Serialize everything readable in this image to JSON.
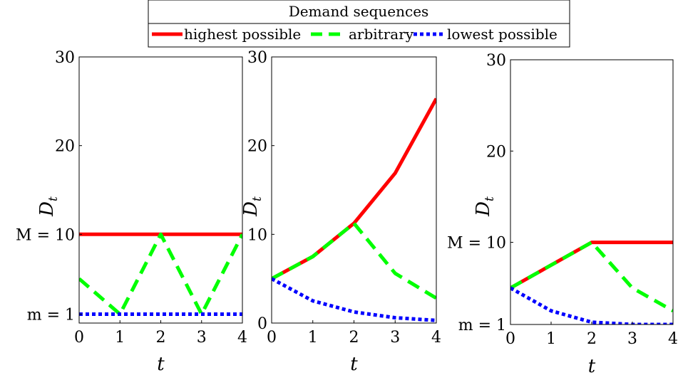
{
  "legend": {
    "title": "Demand sequences",
    "entries": [
      {
        "label": "highest possible",
        "color": "#ff0000",
        "style": "solid"
      },
      {
        "label": "arbitrary",
        "color": "#00ff00",
        "style": "dashed"
      },
      {
        "label": "lowest possible",
        "color": "#0000ff",
        "style": "dotted"
      }
    ]
  },
  "chart_data": [
    {
      "type": "line",
      "xlabel": "t",
      "ylabel": "D",
      "ylabel_subscript": "t",
      "xlim": [
        0,
        4
      ],
      "ylim": [
        0,
        30
      ],
      "xticks": [
        "0",
        "1",
        "2",
        "3",
        "4"
      ],
      "yticks": [
        {
          "value": 1,
          "label": "m = 1"
        },
        {
          "value": 10,
          "label": "M = 10"
        },
        {
          "value": 20,
          "label": "20"
        },
        {
          "value": 30,
          "label": "30"
        }
      ],
      "x": [
        0,
        1,
        2,
        3,
        4
      ],
      "series": [
        {
          "name": "highest possible",
          "values": [
            10,
            10,
            10,
            10,
            10
          ]
        },
        {
          "name": "arbitrary",
          "values": [
            5,
            1,
            10,
            1,
            10
          ]
        },
        {
          "name": "lowest possible",
          "values": [
            1,
            1,
            1,
            1,
            1
          ]
        }
      ]
    },
    {
      "type": "line",
      "xlabel": "t",
      "ylabel": "D",
      "ylabel_subscript": "t",
      "xlim": [
        0,
        4
      ],
      "ylim": [
        0,
        30
      ],
      "xticks": [
        "0",
        "1",
        "2",
        "3",
        "4"
      ],
      "yticks": [
        {
          "value": 0,
          "label": "0"
        },
        {
          "value": 10,
          "label": "10"
        },
        {
          "value": 20,
          "label": "20"
        },
        {
          "value": 30,
          "label": "30"
        }
      ],
      "x": [
        0,
        1,
        2,
        3,
        4
      ],
      "series": [
        {
          "name": "highest possible",
          "values": [
            5,
            7.5,
            11.25,
            16.9,
            25.3
          ]
        },
        {
          "name": "arbitrary",
          "values": [
            5,
            7.5,
            11.25,
            5.6,
            2.8
          ]
        },
        {
          "name": "lowest possible",
          "values": [
            5,
            2.5,
            1.25,
            0.6,
            0.3
          ]
        }
      ]
    },
    {
      "type": "line",
      "xlabel": "t",
      "ylabel": "D",
      "ylabel_subscript": "t",
      "xlim": [
        0,
        4
      ],
      "ylim": [
        1,
        30
      ],
      "xticks": [
        "0",
        "1",
        "2",
        "3",
        "4"
      ],
      "yticks": [
        {
          "value": 1,
          "label": "m = 1"
        },
        {
          "value": 10,
          "label": "M = 10"
        },
        {
          "value": 20,
          "label": "20"
        },
        {
          "value": 30,
          "label": "30"
        }
      ],
      "x": [
        0,
        1,
        2,
        3,
        4
      ],
      "series": [
        {
          "name": "highest possible",
          "values": [
            5,
            7.5,
            10,
            10,
            10
          ]
        },
        {
          "name": "arbitrary",
          "values": [
            5,
            7.5,
            10,
            5,
            2.5
          ]
        },
        {
          "name": "lowest possible",
          "values": [
            5,
            2.5,
            1.25,
            1,
            1
          ]
        }
      ]
    }
  ]
}
